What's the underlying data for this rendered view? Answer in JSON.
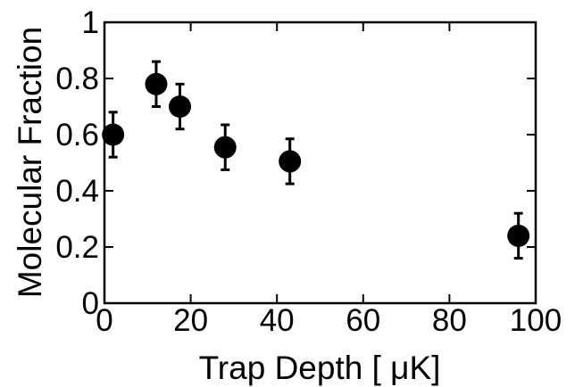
{
  "chart_data": {
    "type": "scatter",
    "title": "",
    "xlabel": "Trap Depth [ μK]",
    "ylabel": "Molecular Fraction",
    "xlim": [
      0,
      100
    ],
    "ylim": [
      0,
      1
    ],
    "x_ticks": [
      0,
      20,
      40,
      60,
      80,
      100
    ],
    "x_tick_labels": [
      "0",
      "20",
      "40",
      "60",
      "80",
      "100"
    ],
    "y_ticks": [
      0,
      0.2,
      0.4,
      0.6,
      0.8,
      1
    ],
    "y_tick_labels": [
      "0",
      "0.2",
      "0.4",
      "0.6",
      "0.8",
      "1"
    ],
    "grid": false,
    "marker_color": "#000000",
    "points": [
      {
        "x": 2,
        "y": 0.6,
        "err": 0.08
      },
      {
        "x": 12,
        "y": 0.78,
        "err": 0.08
      },
      {
        "x": 17.5,
        "y": 0.7,
        "err": 0.08
      },
      {
        "x": 28,
        "y": 0.555,
        "err": 0.08
      },
      {
        "x": 43,
        "y": 0.505,
        "err": 0.08
      },
      {
        "x": 96,
        "y": 0.24,
        "err": 0.08
      }
    ]
  }
}
